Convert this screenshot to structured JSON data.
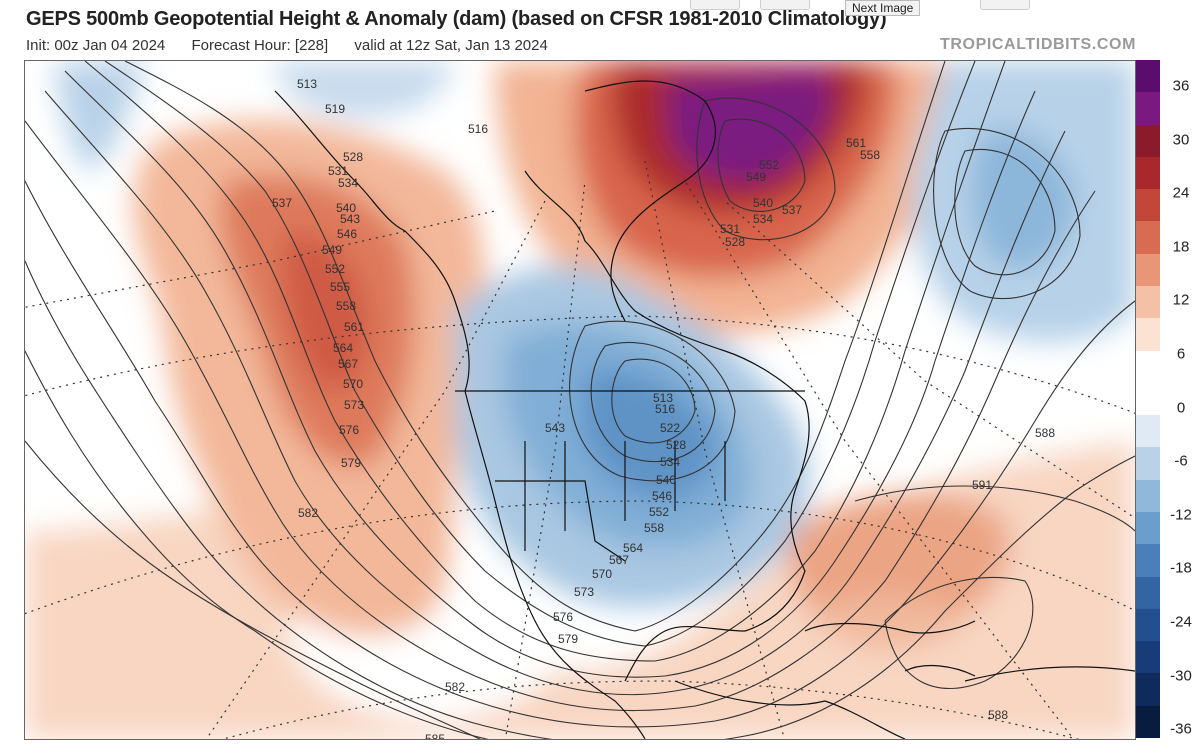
{
  "header": {
    "title": "GEPS 500mb Geopotential Height & Anomaly (dam) (based on CFSR 1981-2010 Climatology)",
    "init": "Init: 00z Jan 04 2024",
    "forecast_hour": "Forecast Hour: [228]",
    "valid": "valid at 12z Sat, Jan 13 2024",
    "brand": "TROPICALTIDBITS.COM"
  },
  "tooltip": "Next Image",
  "colorbar": {
    "ticks": [
      "36",
      "30",
      "24",
      "18",
      "12",
      "6",
      "0",
      "-6",
      "-12",
      "-18",
      "-24",
      "-30",
      "-36"
    ],
    "colors": [
      "#5b0d6e",
      "#7a1a80",
      "#8a1b2a",
      "#a8282c",
      "#c2463a",
      "#d86c52",
      "#e89578",
      "#f4c0a6",
      "#fbe2d3",
      "#ffffff",
      "#ffffff",
      "#dfeaf4",
      "#b9d2e8",
      "#8fb8db",
      "#6b9ecd",
      "#4a7fb9",
      "#3465a3",
      "#244f8e",
      "#183c77",
      "#0e2b5c",
      "#081c40"
    ]
  },
  "contours": {
    "labels": [
      "513",
      "519",
      "516",
      "528",
      "531",
      "534",
      "537",
      "540",
      "543",
      "546",
      "549",
      "552",
      "555",
      "558",
      "561",
      "564",
      "567",
      "570",
      "573",
      "576",
      "579",
      "582",
      "585",
      "588",
      "591",
      "513",
      "516",
      "522",
      "528",
      "534",
      "540",
      "546",
      "552",
      "558",
      "564",
      "567",
      "570",
      "573",
      "576",
      "579",
      "582",
      "588",
      "543",
      "549",
      "552",
      "540",
      "537",
      "534",
      "531",
      "528",
      "561",
      "558"
    ],
    "colors": {
      "contour": "#333333",
      "map_lines": "#111111"
    }
  }
}
